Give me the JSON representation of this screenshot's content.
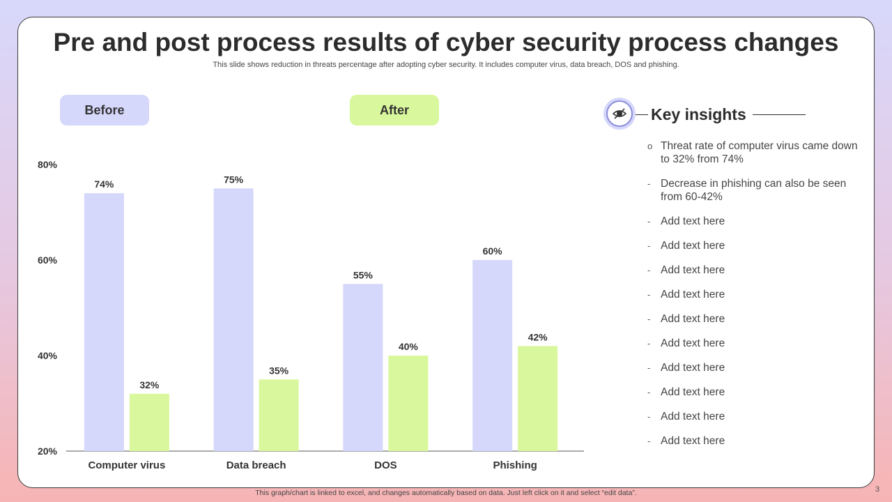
{
  "slide": {
    "title": "Pre and post process results of cyber security process changes",
    "subtitle": "This slide shows reduction in threats percentage after adopting cyber security. It includes computer virus, data breach, DOS and phishing.",
    "footer": "This graph/chart is linked to excel, and changes automatically based on data. Just left click on it and select “edit data”.",
    "page_number": "3"
  },
  "legend": {
    "before_label": "Before",
    "after_label": "After"
  },
  "colors": {
    "before": "#d5d7fb",
    "after": "#d9f79c",
    "axis": "#555555",
    "text": "#333333"
  },
  "chart_data": {
    "type": "bar",
    "categories": [
      "Computer virus",
      "Data breach",
      "DOS",
      "Phishing"
    ],
    "series": [
      {
        "name": "Before",
        "values": [
          74,
          75,
          55,
          60
        ],
        "labels": [
          "74%",
          "75%",
          "55%",
          "60%"
        ]
      },
      {
        "name": "After",
        "values": [
          32,
          35,
          40,
          42
        ],
        "labels": [
          "32%",
          "35%",
          "40%",
          "42%"
        ]
      }
    ],
    "ylim": [
      20,
      80
    ],
    "yticks": [
      20,
      40,
      60,
      80
    ],
    "ytick_labels": [
      "20%",
      "40%",
      "60%",
      "80%"
    ],
    "grid": false
  },
  "insights": {
    "title": "Key insights",
    "icon": "eye-icon",
    "items": [
      {
        "bullet": "o",
        "text": "Threat rate of computer virus came down to 32% from 74%"
      },
      {
        "bullet": "-",
        "text": "Decrease in phishing can also be seen from 60-42%"
      },
      {
        "bullet": "-",
        "text": "Add text here"
      },
      {
        "bullet": "-",
        "text": "Add text here"
      },
      {
        "bullet": "-",
        "text": "Add text here"
      },
      {
        "bullet": "-",
        "text": "Add text here"
      },
      {
        "bullet": "-",
        "text": "Add text here"
      },
      {
        "bullet": "-",
        "text": "Add text here"
      },
      {
        "bullet": "-",
        "text": "Add text here"
      },
      {
        "bullet": "-",
        "text": "Add text here"
      },
      {
        "bullet": "-",
        "text": "Add text here"
      },
      {
        "bullet": "-",
        "text": "Add text here"
      }
    ]
  }
}
